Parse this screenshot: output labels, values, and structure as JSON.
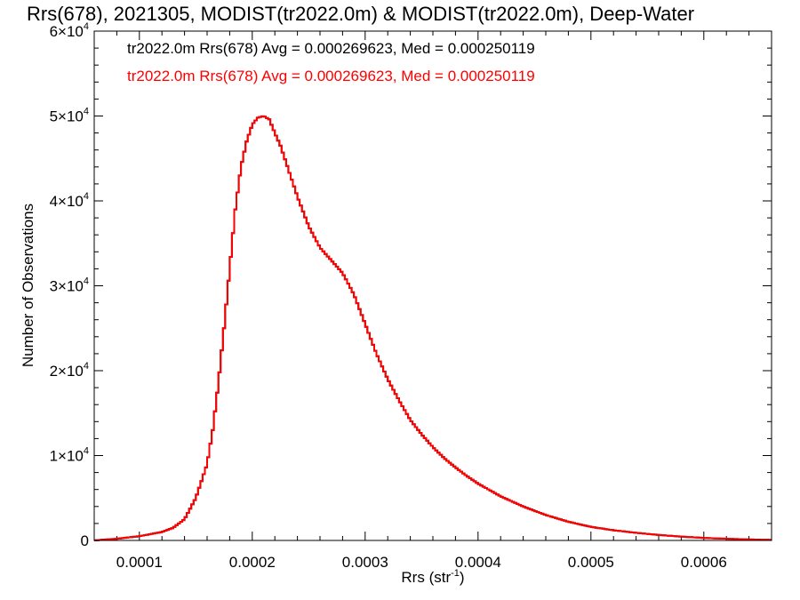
{
  "chart_data": {
    "type": "line",
    "title": "Rrs(678), 2021305, MODIST(tr2022.0m) & MODIST(tr2022.0m), Deep-Water",
    "xlabel_main": "Rrs (str",
    "xlabel_sup": "-1",
    "xlabel_close": ")",
    "ylabel": "Number of Observations",
    "xlim": [
      6e-05,
      0.00066
    ],
    "ylim": [
      0,
      60000
    ],
    "x_ticks": [
      {
        "value": 0.0001,
        "label": "0.0001"
      },
      {
        "value": 0.0002,
        "label": "0.0002"
      },
      {
        "value": 0.0003,
        "label": "0.0003"
      },
      {
        "value": 0.0004,
        "label": "0.0004"
      },
      {
        "value": 0.0005,
        "label": "0.0005"
      },
      {
        "value": 0.0006,
        "label": "0.0006"
      }
    ],
    "y_ticks": [
      {
        "value": 0,
        "mantissa": "0",
        "exp": ""
      },
      {
        "value": 10000,
        "mantissa": "1×10",
        "exp": "4"
      },
      {
        "value": 20000,
        "mantissa": "2×10",
        "exp": "4"
      },
      {
        "value": 30000,
        "mantissa": "3×10",
        "exp": "4"
      },
      {
        "value": 40000,
        "mantissa": "4×10",
        "exp": "4"
      },
      {
        "value": 50000,
        "mantissa": "5×10",
        "exp": "4"
      },
      {
        "value": 60000,
        "mantissa": "6×10",
        "exp": "4"
      }
    ],
    "legend": [
      {
        "text": "tr2022.0m Rrs(678) Avg = 0.000269623, Med = 0.000250119",
        "color": "#000000"
      },
      {
        "text": "tr2022.0m Rrs(678) Avg = 0.000269623, Med = 0.000250119",
        "color": "#ff0000"
      }
    ],
    "series": [
      {
        "color": "#000000",
        "x": [
          6e-05,
          8e-05,
          0.0001,
          0.00012,
          0.00013,
          0.00014,
          0.00015,
          0.00016,
          0.000165,
          0.00017,
          0.000175,
          0.00018,
          0.000185,
          0.00019,
          0.000195,
          0.0002,
          0.000205,
          0.00021,
          0.000215,
          0.00022,
          0.000225,
          0.00023,
          0.000235,
          0.00024,
          0.00025,
          0.00026,
          0.00027,
          0.00028,
          0.00029,
          0.0003,
          0.00031,
          0.00032,
          0.00033,
          0.00034,
          0.00035,
          0.00036,
          0.00037,
          0.00038,
          0.00039,
          0.0004,
          0.00042,
          0.00044,
          0.00046,
          0.00048,
          0.0005,
          0.00052,
          0.00054,
          0.00056,
          0.00058,
          0.0006,
          0.00062,
          0.00064,
          0.00066
        ],
        "y": [
          0,
          200,
          500,
          1000,
          1500,
          2500,
          5000,
          9000,
          13000,
          18500,
          25000,
          32000,
          39000,
          44000,
          47000,
          49000,
          49800,
          50000,
          49600,
          48000,
          46500,
          44500,
          42500,
          40500,
          37000,
          34500,
          33000,
          31500,
          29000,
          25500,
          22000,
          19000,
          16500,
          14200,
          12500,
          11000,
          9700,
          8600,
          7600,
          6700,
          5200,
          4000,
          3000,
          2200,
          1600,
          1200,
          900,
          650,
          450,
          300,
          200,
          120,
          60
        ]
      },
      {
        "color": "#ff0000",
        "x": [
          6e-05,
          8e-05,
          0.0001,
          0.00012,
          0.00013,
          0.00014,
          0.00015,
          0.00016,
          0.000165,
          0.00017,
          0.000175,
          0.00018,
          0.000185,
          0.00019,
          0.000195,
          0.0002,
          0.000205,
          0.00021,
          0.000215,
          0.00022,
          0.000225,
          0.00023,
          0.000235,
          0.00024,
          0.00025,
          0.00026,
          0.00027,
          0.00028,
          0.00029,
          0.0003,
          0.00031,
          0.00032,
          0.00033,
          0.00034,
          0.00035,
          0.00036,
          0.00037,
          0.00038,
          0.00039,
          0.0004,
          0.00042,
          0.00044,
          0.00046,
          0.00048,
          0.0005,
          0.00052,
          0.00054,
          0.00056,
          0.00058,
          0.0006,
          0.00062,
          0.00064,
          0.00066
        ],
        "y": [
          0,
          200,
          500,
          1000,
          1500,
          2500,
          5000,
          9000,
          13000,
          18500,
          25000,
          32000,
          39000,
          44000,
          47000,
          49000,
          49800,
          50000,
          49600,
          48000,
          46500,
          44500,
          42500,
          40500,
          37000,
          34500,
          33000,
          31500,
          29000,
          25500,
          22000,
          19000,
          16500,
          14200,
          12500,
          11000,
          9700,
          8600,
          7600,
          6700,
          5200,
          4000,
          3000,
          2200,
          1600,
          1200,
          900,
          650,
          450,
          300,
          200,
          120,
          60
        ]
      }
    ],
    "grid": false,
    "legend_position": "top-left"
  }
}
